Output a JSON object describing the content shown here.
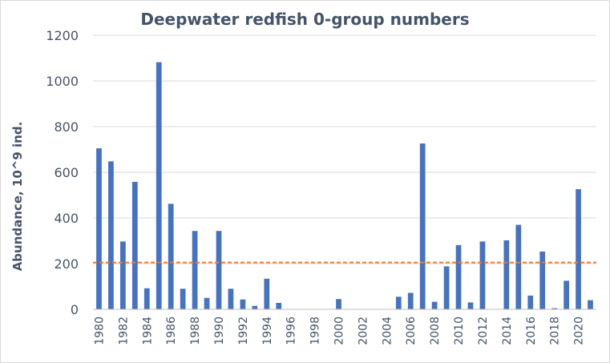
{
  "chart_data": {
    "type": "bar",
    "title": "Deepwater redfish 0-group numbers",
    "xlabel": "",
    "ylabel": "Abundance, 10^9 ind.",
    "ylim": [
      0,
      1200
    ],
    "yticks": [
      "0",
      "200",
      "400",
      "600",
      "800",
      "1000",
      "1200"
    ],
    "grid": true,
    "legend": "none",
    "categories": [
      "1980",
      "1981",
      "1982",
      "1983",
      "1984",
      "1985",
      "1986",
      "1987",
      "1988",
      "1989",
      "1990",
      "1991",
      "1992",
      "1993",
      "1994",
      "1995",
      "1996",
      "1997",
      "1998",
      "1999",
      "2000",
      "2001",
      "2002",
      "2003",
      "2004",
      "2005",
      "2006",
      "2007",
      "2008",
      "2009",
      "2010",
      "2011",
      "2012",
      "2013",
      "2014",
      "2015",
      "2016",
      "2017",
      "2018",
      "2019",
      "2020",
      "2021"
    ],
    "xtick_labels": [
      "1980",
      "1982",
      "1984",
      "1986",
      "1988",
      "1990",
      "1992",
      "1994",
      "1996",
      "1998",
      "2000",
      "2002",
      "2004",
      "2006",
      "2008",
      "2010",
      "2012",
      "2014",
      "2016",
      "2018",
      "2020"
    ],
    "values": [
      705,
      648,
      297,
      558,
      92,
      1082,
      462,
      90,
      343,
      50,
      343,
      90,
      43,
      15,
      134,
      28,
      0,
      0,
      0,
      0,
      45,
      0,
      0,
      0,
      0,
      55,
      72,
      726,
      33,
      188,
      281,
      30,
      297,
      0,
      302,
      370,
      60,
      253,
      5,
      125,
      526,
      40
    ],
    "reference_line": 205,
    "colors": {
      "bar": "#4472c4",
      "reference_line": "#ed7d31",
      "grid": "#d9d9d9",
      "text": "#44546a"
    }
  }
}
